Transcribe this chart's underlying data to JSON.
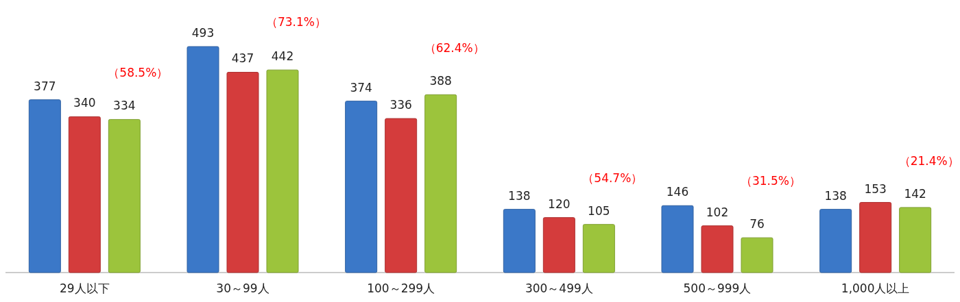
{
  "chart_data": {
    "type": "bar",
    "categories": [
      "29人以下",
      "30～99人",
      "100～299人",
      "300～499人",
      "500～999人",
      "1,000人以上"
    ],
    "series": [
      {
        "color": "#3b78c8",
        "values": [
          377,
          493,
          374,
          138,
          146,
          138
        ]
      },
      {
        "color": "#d43c3c",
        "values": [
          340,
          437,
          336,
          120,
          102,
          153
        ]
      },
      {
        "color": "#9cc43c",
        "values": [
          334,
          442,
          388,
          105,
          76,
          142
        ]
      }
    ],
    "data_labels": true,
    "annotations": [
      "（58.5%）",
      "（73.1%）",
      "（62.4%）",
      "（54.7%）",
      "（31.5%）",
      "（21.4%）"
    ]
  }
}
